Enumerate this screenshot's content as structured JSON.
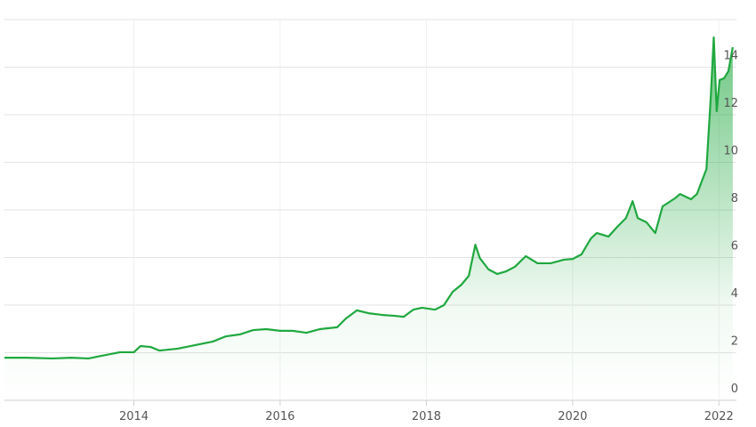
{
  "chart_data": {
    "type": "area",
    "color": "#1fa83f",
    "x": [
      2012.23,
      2012.53,
      2012.89,
      2013.14,
      2013.38,
      2013.56,
      2013.81,
      2014.0,
      2014.09,
      2014.23,
      2014.35,
      2014.6,
      2014.84,
      2015.08,
      2015.26,
      2015.45,
      2015.63,
      2015.81,
      2016.0,
      2016.17,
      2016.36,
      2016.54,
      2016.78,
      2016.9,
      2017.05,
      2017.21,
      2017.39,
      2017.57,
      2017.69,
      2017.82,
      2017.94,
      2018.12,
      2018.24,
      2018.36,
      2018.48,
      2018.58,
      2018.67,
      2018.73,
      2018.85,
      2018.97,
      2019.09,
      2019.21,
      2019.36,
      2019.52,
      2019.7,
      2019.88,
      2020.0,
      2020.12,
      2020.25,
      2020.33,
      2020.49,
      2020.61,
      2020.73,
      2020.82,
      2020.89,
      2021.01,
      2021.13,
      2021.23,
      2021.4,
      2021.47,
      2021.62,
      2021.7,
      2021.83,
      2021.89,
      2021.93,
      2021.97,
      2022.01,
      2022.07,
      2022.13,
      2022.19
    ],
    "values": [
      1.79,
      1.79,
      1.76,
      1.79,
      1.76,
      1.87,
      2.02,
      2.02,
      2.28,
      2.24,
      2.09,
      2.17,
      2.32,
      2.47,
      2.69,
      2.77,
      2.95,
      2.99,
      2.92,
      2.92,
      2.84,
      2.99,
      3.07,
      3.44,
      3.78,
      3.66,
      3.59,
      3.55,
      3.51,
      3.81,
      3.89,
      3.81,
      4.0,
      4.56,
      4.86,
      5.23,
      6.54,
      5.98,
      5.5,
      5.31,
      5.42,
      5.61,
      6.06,
      5.76,
      5.76,
      5.91,
      5.94,
      6.13,
      6.8,
      7.03,
      6.88,
      7.29,
      7.66,
      8.37,
      7.66,
      7.48,
      7.03,
      8.15,
      8.49,
      8.67,
      8.45,
      8.67,
      9.72,
      12.79,
      15.25,
      12.15,
      13.46,
      13.53,
      13.83,
      14.84
    ],
    "xlim": [
      2012.23,
      2022.24
    ],
    "xticks": [
      2014,
      2016,
      2018,
      2020,
      2022
    ],
    "ylim": [
      0,
      16
    ],
    "yticks": [
      0,
      2,
      4,
      6,
      8,
      10,
      12,
      14
    ],
    "grid": true
  }
}
